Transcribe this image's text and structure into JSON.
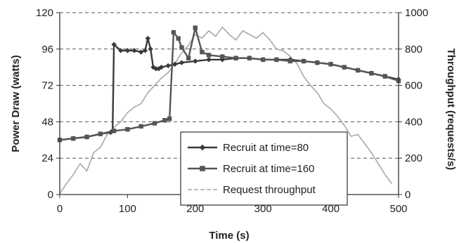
{
  "chart_data": {
    "type": "line",
    "title": "",
    "xlabel": "Time (s)",
    "ylabel_left": "Power Draw (watts)",
    "ylabel_right": "Throughput (requests/s)",
    "xlim": [
      0,
      500
    ],
    "ylim_left": [
      0,
      120
    ],
    "ylim_right": [
      0,
      1000
    ],
    "x_ticks": [
      0,
      100,
      200,
      300,
      400,
      500
    ],
    "y_ticks_left": [
      0,
      24,
      48,
      72,
      96,
      120
    ],
    "y_ticks_right": [
      0,
      200,
      400,
      600,
      800,
      1000
    ],
    "grid": "horizontal dashed",
    "legend_position": "lower-center-right",
    "series": [
      {
        "name": "Recruit at time=80",
        "axis": "left",
        "color": "#3a3a3a",
        "marker": "diamond",
        "x": [
          0,
          20,
          40,
          60,
          75,
          78,
          80,
          90,
          100,
          110,
          120,
          126,
          130,
          134,
          138,
          142,
          146,
          150,
          160,
          170,
          180,
          200,
          220,
          240,
          260,
          280,
          300,
          320,
          340,
          360,
          380,
          400,
          420,
          440,
          460,
          480,
          500
        ],
        "values": [
          36,
          37,
          38,
          40,
          41,
          42,
          99,
          95,
          95,
          95,
          94,
          95,
          103,
          96,
          84,
          83,
          83,
          84,
          85,
          86,
          87,
          88,
          89,
          89,
          90,
          90,
          89,
          89,
          89,
          88,
          87,
          86,
          84,
          82,
          80,
          78,
          76
        ]
      },
      {
        "name": "Recruit at time=160",
        "axis": "left",
        "color": "#555555",
        "marker": "square",
        "x": [
          0,
          20,
          40,
          60,
          80,
          100,
          120,
          140,
          155,
          162,
          168,
          175,
          180,
          190,
          200,
          210,
          220,
          240,
          260,
          280,
          300,
          320,
          340,
          360,
          380,
          400,
          420,
          440,
          460,
          480,
          500
        ],
        "values": [
          36,
          37,
          38,
          40,
          42,
          43,
          45,
          47,
          49,
          50,
          107,
          103,
          97,
          90,
          110,
          94,
          92,
          91,
          90,
          90,
          89,
          89,
          88,
          88,
          87,
          86,
          84,
          82,
          80,
          78,
          75
        ]
      },
      {
        "name": "Request throughput",
        "axis": "right",
        "color": "#a8a8a8",
        "marker": "none",
        "x": [
          0,
          10,
          20,
          30,
          40,
          50,
          60,
          70,
          80,
          90,
          100,
          110,
          120,
          130,
          140,
          150,
          160,
          170,
          180,
          190,
          200,
          210,
          220,
          230,
          240,
          250,
          260,
          270,
          280,
          290,
          300,
          310,
          320,
          330,
          340,
          350,
          360,
          370,
          380,
          390,
          400,
          410,
          420,
          430,
          440,
          450,
          460,
          470,
          480,
          490
        ],
        "values": [
          5,
          60,
          110,
          170,
          130,
          230,
          260,
          330,
          370,
          400,
          450,
          480,
          500,
          560,
          600,
          640,
          670,
          720,
          780,
          820,
          880,
          860,
          900,
          870,
          920,
          880,
          850,
          900,
          880,
          860,
          890,
          850,
          800,
          790,
          760,
          720,
          650,
          600,
          560,
          500,
          470,
          430,
          380,
          320,
          330,
          280,
          230,
          170,
          110,
          60
        ]
      }
    ]
  }
}
